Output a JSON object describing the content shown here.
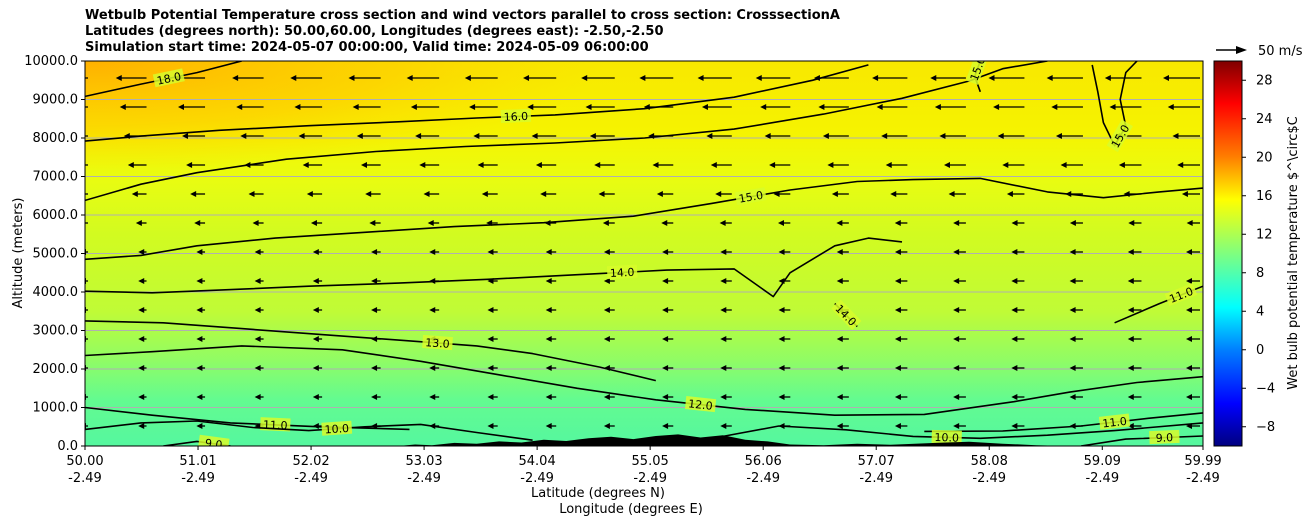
{
  "chart_data": {
    "type": "contour",
    "title_lines": [
      "Wetbulb Potential Temperature cross section and wind vectors parallel to cross section: CrosssectionA",
      "Latitudes (degrees north): 50.00,60.00, Longitudes (degrees east): -2.50,-2.50",
      "Simulation start time: 2024-05-07 00:00:00, Valid time: 2024-05-09 06:00:00"
    ],
    "xlabel_lat": "Latitude (degrees N)",
    "xlabel_lon": "Longitude (degrees E)",
    "ylabel": "Altitude (meters)",
    "xlim": [
      50.0,
      59.99
    ],
    "ylim": [
      0,
      10000
    ],
    "x_ticks": [
      {
        "lat": "50.00",
        "lon": "-2.49",
        "v": 50.0
      },
      {
        "lat": "51.01",
        "lon": "-2.49",
        "v": 51.01
      },
      {
        "lat": "52.02",
        "lon": "-2.49",
        "v": 52.02
      },
      {
        "lat": "53.03",
        "lon": "-2.49",
        "v": 53.03
      },
      {
        "lat": "54.04",
        "lon": "-2.49",
        "v": 54.04
      },
      {
        "lat": "55.05",
        "lon": "-2.49",
        "v": 55.05
      },
      {
        "lat": "56.06",
        "lon": "-2.49",
        "v": 56.06
      },
      {
        "lat": "57.07",
        "lon": "-2.49",
        "v": 57.07
      },
      {
        "lat": "58.08",
        "lon": "-2.49",
        "v": 58.08
      },
      {
        "lat": "59.09",
        "lon": "-2.49",
        "v": 59.09
      },
      {
        "lat": "59.99",
        "lon": "-2.49",
        "v": 59.99
      }
    ],
    "y_ticks": [
      {
        "label": "0.0",
        "v": 0
      },
      {
        "label": "1000.0",
        "v": 1000
      },
      {
        "label": "2000.0",
        "v": 2000
      },
      {
        "label": "3000.0",
        "v": 3000
      },
      {
        "label": "4000.0",
        "v": 4000
      },
      {
        "label": "5000.0",
        "v": 5000
      },
      {
        "label": "6000.0",
        "v": 6000
      },
      {
        "label": "7000.0",
        "v": 7000
      },
      {
        "label": "8000.0",
        "v": 8000
      },
      {
        "label": "9000.0",
        "v": 9000
      },
      {
        "label": "10000.0",
        "v": 10000
      }
    ],
    "grid": "horizontal",
    "colorbar": {
      "label": "Wet bulb potential temperature $^\\circ$C",
      "range": [
        -10,
        30
      ],
      "ticks": [
        "−8",
        "−4",
        "0",
        "4",
        "8",
        "12",
        "16",
        "20",
        "24",
        "28"
      ],
      "tick_values": [
        -8,
        -4,
        0,
        4,
        8,
        12,
        16,
        20,
        24,
        28
      ],
      "colormap": "jet"
    },
    "quiver_key": {
      "label": "50 m/s"
    },
    "contour_lines": [
      {
        "level": 18.0,
        "label": "18.0",
        "points": [
          [
            50.0,
            9080
          ],
          [
            50.5,
            9400
          ],
          [
            51.0,
            9700
          ],
          [
            51.4,
            10000
          ]
        ]
      },
      {
        "level": 16.0,
        "label": "16.0",
        "points": [
          [
            50.0,
            7920
          ],
          [
            50.5,
            8050
          ],
          [
            51.2,
            8200
          ],
          [
            52.0,
            8320
          ],
          [
            52.8,
            8420
          ],
          [
            53.5,
            8520
          ],
          [
            54.2,
            8600
          ],
          [
            55.0,
            8760
          ],
          [
            55.8,
            9060
          ],
          [
            56.5,
            9500
          ],
          [
            57.0,
            9900
          ]
        ]
      },
      {
        "level": 16.0,
        "label": "",
        "points": [
          [
            50.0,
            6380
          ],
          [
            50.5,
            6800
          ],
          [
            51.0,
            7100
          ],
          [
            51.8,
            7450
          ],
          [
            52.6,
            7650
          ],
          [
            53.4,
            7780
          ],
          [
            54.2,
            7870
          ],
          [
            55.0,
            8000
          ],
          [
            55.8,
            8230
          ],
          [
            56.6,
            8620
          ],
          [
            57.3,
            9030
          ],
          [
            57.9,
            9480
          ],
          [
            58.2,
            9800
          ],
          [
            58.6,
            10000
          ]
        ]
      },
      {
        "level": 15.0,
        "label": "15.0",
        "points": [
          [
            50.0,
            4850
          ],
          [
            50.5,
            4950
          ],
          [
            51.0,
            5200
          ],
          [
            51.7,
            5400
          ],
          [
            52.5,
            5550
          ],
          [
            53.3,
            5700
          ],
          [
            54.1,
            5800
          ],
          [
            54.9,
            5970
          ],
          [
            55.6,
            6300
          ],
          [
            56.3,
            6650
          ],
          [
            56.9,
            6870
          ],
          [
            57.4,
            6920
          ],
          [
            58.0,
            6950
          ],
          [
            58.6,
            6600
          ],
          [
            59.1,
            6450
          ],
          [
            59.6,
            6600
          ],
          [
            59.99,
            6700
          ]
        ]
      },
      {
        "level": 14.0,
        "label": "14.0",
        "points": [
          [
            50.0,
            4020
          ],
          [
            50.6,
            3980
          ],
          [
            51.2,
            4050
          ],
          [
            52.0,
            4150
          ],
          [
            52.8,
            4230
          ],
          [
            53.6,
            4330
          ],
          [
            54.4,
            4450
          ],
          [
            55.2,
            4570
          ],
          [
            55.8,
            4600
          ],
          [
            56.15,
            3880
          ],
          [
            56.3,
            4500
          ],
          [
            56.7,
            5200
          ],
          [
            57.0,
            5400
          ],
          [
            57.3,
            5300
          ]
        ]
      },
      {
        "level": 14.0,
        "label": "14.0",
        "points": [
          [
            56.7,
            3700
          ],
          [
            56.9,
            3100
          ]
        ]
      },
      {
        "level": 13.0,
        "label": "13.0",
        "points": [
          [
            50.0,
            3250
          ],
          [
            50.7,
            3200
          ],
          [
            51.4,
            3050
          ],
          [
            52.1,
            2900
          ],
          [
            52.8,
            2750
          ],
          [
            53.5,
            2600
          ],
          [
            54.0,
            2400
          ],
          [
            54.6,
            2050
          ],
          [
            55.1,
            1700
          ]
        ]
      },
      {
        "level": 12.0,
        "label": "12.0",
        "points": [
          [
            50.0,
            2350
          ],
          [
            50.6,
            2450
          ],
          [
            51.4,
            2600
          ],
          [
            52.3,
            2500
          ],
          [
            53.0,
            2200
          ],
          [
            53.7,
            1850
          ],
          [
            54.4,
            1500
          ],
          [
            55.1,
            1200
          ],
          [
            55.9,
            950
          ],
          [
            56.7,
            800
          ],
          [
            57.5,
            820
          ],
          [
            58.3,
            1150
          ],
          [
            58.8,
            1400
          ],
          [
            59.4,
            1650
          ],
          [
            59.99,
            1800
          ]
        ]
      },
      {
        "level": 11.0,
        "label": "11.0",
        "points": [
          [
            50.0,
            1000
          ],
          [
            50.6,
            800
          ],
          [
            51.3,
            600
          ],
          [
            52.1,
            500
          ],
          [
            52.9,
            430
          ]
        ]
      },
      {
        "level": 11.0,
        "label": "11.0",
        "points": [
          [
            57.5,
            380
          ],
          [
            58.2,
            390
          ],
          [
            58.9,
            520
          ],
          [
            59.5,
            720
          ],
          [
            59.99,
            860
          ]
        ]
      },
      {
        "level": 10.0,
        "label": "10.0",
        "points": [
          [
            50.0,
            430
          ],
          [
            50.5,
            600
          ],
          [
            51.0,
            650
          ],
          [
            51.5,
            480
          ],
          [
            52.0,
            400
          ],
          [
            52.5,
            500
          ],
          [
            53.0,
            560
          ],
          [
            53.5,
            350
          ],
          [
            54.0,
            150
          ]
        ]
      },
      {
        "level": 10.0,
        "label": "10.0",
        "points": [
          [
            55.7,
            250
          ],
          [
            56.2,
            520
          ],
          [
            56.8,
            420
          ],
          [
            57.4,
            250
          ],
          [
            58.0,
            200
          ],
          [
            58.6,
            280
          ],
          [
            59.2,
            400
          ],
          [
            59.99,
            600
          ]
        ]
      },
      {
        "level": 9.0,
        "label": "9.0",
        "points": [
          [
            50.7,
            0
          ],
          [
            51.0,
            120
          ],
          [
            51.3,
            0
          ]
        ]
      },
      {
        "level": 9.0,
        "label": "9.0",
        "points": [
          [
            58.9,
            0
          ],
          [
            59.3,
            180
          ],
          [
            59.99,
            260
          ]
        ]
      },
      {
        "level": 11.0,
        "label": "11.0",
        "points": [
          [
            59.2,
            3200
          ],
          [
            59.6,
            3700
          ],
          [
            59.99,
            4150
          ]
        ]
      },
      {
        "level": 15.0,
        "label": "15.0",
        "points": [
          [
            58.0,
            9200
          ],
          [
            57.95,
            9600
          ],
          [
            58.0,
            10000
          ]
        ]
      },
      {
        "level": 15.0,
        "label": "15.0",
        "points": [
          [
            59.0,
            9900
          ],
          [
            59.05,
            9200
          ],
          [
            59.1,
            8400
          ],
          [
            59.2,
            7800
          ],
          [
            59.3,
            8300
          ],
          [
            59.25,
            9000
          ],
          [
            59.3,
            9700
          ],
          [
            59.4,
            10000
          ]
        ]
      }
    ]
  }
}
